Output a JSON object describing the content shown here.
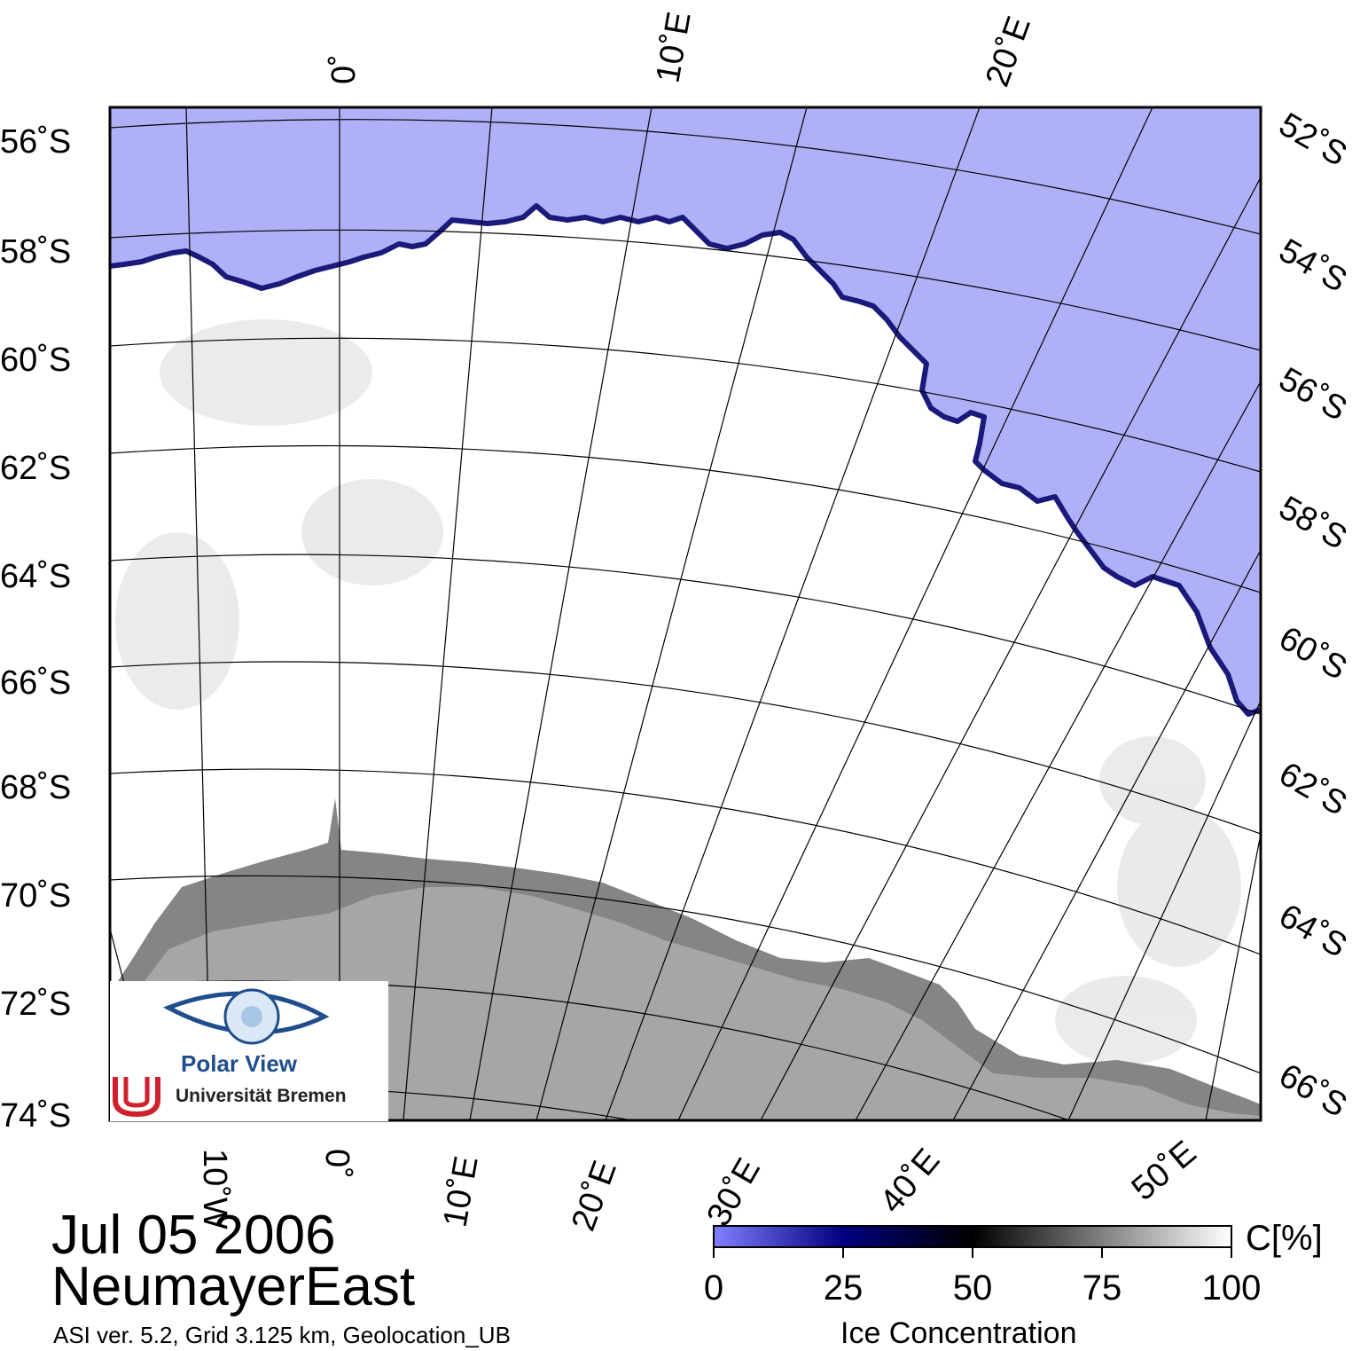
{
  "map": {
    "date": "Jul 05 2006",
    "region": "NeumayerEast",
    "footnote": "ASI ver. 5.2,  Grid 3.125 km, Geolocation_UB",
    "left_lat_labels": [
      "56˚S",
      "58˚S",
      "60˚S",
      "62˚S",
      "64˚S",
      "66˚S",
      "68˚S",
      "70˚S",
      "72˚S",
      "74˚S"
    ],
    "right_lat_labels": [
      "52˚S",
      "54˚S",
      "56˚S",
      "58˚S",
      "60˚S",
      "62˚S",
      "64˚S",
      "66˚S"
    ],
    "top_lon_labels": [
      "0˚",
      "10˚E",
      "20˚E"
    ],
    "bottom_lon_labels": [
      "10˚W",
      "0˚",
      "10˚E",
      "20˚E",
      "30˚E",
      "40˚E",
      "50˚E"
    ],
    "colors": {
      "open_water": "#b0b0f8",
      "land_ice_shelf": "#a6a6a6",
      "ice_shelf_dark": "#858585",
      "sea_ice": "#ffffff"
    }
  },
  "colorbar": {
    "title": "Ice Concentration",
    "unit": "C[%]",
    "ticks": [
      "0",
      "25",
      "50",
      "75",
      "100"
    ],
    "stops": [
      "#8080ff",
      "#000080",
      "#000000",
      "#808080",
      "#ffffff"
    ]
  },
  "logo": {
    "name": "Polar View",
    "institution": "Universität Bremen"
  }
}
